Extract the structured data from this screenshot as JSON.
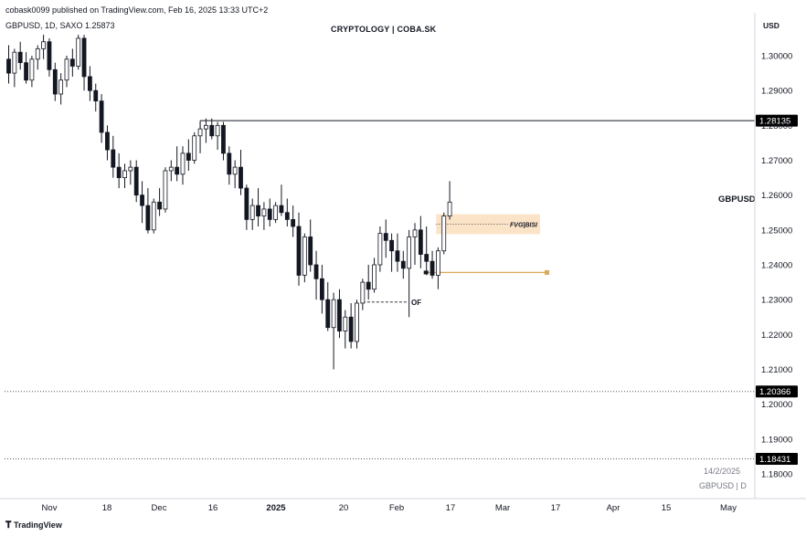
{
  "header": {
    "publish_line": "cobask0099 published on TradingView.com, Feb 16, 2025 13:33 UTC+2",
    "symbol_line": "GBPUSD, 1D, SAXO  1.25873",
    "watermark": "CRYPTOLOGY | COBA.SK",
    "currency": "USD"
  },
  "footer": {
    "logo_text": "TradingView",
    "date_note": "14/2/2025",
    "symbol_note": "GBPUSD | D"
  },
  "colors": {
    "candle": "#131722",
    "bull_fill": "#ffffff",
    "bear_fill": "#131722",
    "fvg_zone": "#fbe3c8",
    "fvg_line": "#d9a85a",
    "label_bg": "#000000",
    "text": "#131722"
  },
  "chart_data": {
    "type": "candlestick",
    "symbol": "GBPUSD",
    "timeframe": "1D",
    "last_price": 1.25873,
    "ylim": [
      1.175,
      1.31
    ],
    "yticks": [
      "1.30000",
      "1.29000",
      "1.28000",
      "1.27000",
      "1.26000",
      "1.25000",
      "1.24000",
      "1.23000",
      "1.22000",
      "1.21000",
      "1.20000",
      "1.19000",
      "1.18000"
    ],
    "xticks": [
      "Nov",
      "18",
      "Dec",
      "16",
      "2025",
      "20",
      "Feb",
      "17",
      "Mar",
      "17",
      "Apr",
      "15",
      "May"
    ],
    "series": [
      {
        "candles": [
          [
            1.299,
            1.303,
            1.292,
            1.295
          ],
          [
            1.295,
            1.302,
            1.291,
            1.301
          ],
          [
            1.301,
            1.304,
            1.296,
            1.298
          ],
          [
            1.298,
            1.301,
            1.292,
            1.293
          ],
          [
            1.293,
            1.3,
            1.291,
            1.299
          ],
          [
            1.299,
            1.303,
            1.296,
            1.302
          ],
          [
            1.302,
            1.306,
            1.299,
            1.304
          ],
          [
            1.304,
            1.305,
            1.294,
            1.296
          ],
          [
            1.296,
            1.298,
            1.287,
            1.289
          ],
          [
            1.289,
            1.295,
            1.286,
            1.293
          ],
          [
            1.293,
            1.3,
            1.291,
            1.299
          ],
          [
            1.299,
            1.302,
            1.294,
            1.297
          ],
          [
            1.297,
            1.306,
            1.296,
            1.305
          ],
          [
            1.305,
            1.306,
            1.29,
            1.294
          ],
          [
            1.294,
            1.297,
            1.287,
            1.29
          ],
          [
            1.29,
            1.292,
            1.284,
            1.287
          ],
          [
            1.287,
            1.289,
            1.275,
            1.278
          ],
          [
            1.278,
            1.28,
            1.27,
            1.273
          ],
          [
            1.273,
            1.277,
            1.265,
            1.268
          ],
          [
            1.268,
            1.272,
            1.262,
            1.265
          ],
          [
            1.265,
            1.269,
            1.262,
            1.267
          ],
          [
            1.267,
            1.27,
            1.263,
            1.268
          ],
          [
            1.268,
            1.27,
            1.258,
            1.26
          ],
          [
            1.26,
            1.264,
            1.252,
            1.257
          ],
          [
            1.257,
            1.262,
            1.249,
            1.25
          ],
          [
            1.25,
            1.259,
            1.249,
            1.258
          ],
          [
            1.258,
            1.262,
            1.254,
            1.256
          ],
          [
            1.256,
            1.268,
            1.255,
            1.267
          ],
          [
            1.267,
            1.27,
            1.264,
            1.268
          ],
          [
            1.268,
            1.274,
            1.264,
            1.266
          ],
          [
            1.266,
            1.274,
            1.263,
            1.272
          ],
          [
            1.272,
            1.276,
            1.267,
            1.27
          ],
          [
            1.27,
            1.278,
            1.269,
            1.277
          ],
          [
            1.277,
            1.281,
            1.272,
            1.279
          ],
          [
            1.279,
            1.282,
            1.275,
            1.28
          ],
          [
            1.28,
            1.282,
            1.276,
            1.277
          ],
          [
            1.277,
            1.281,
            1.273,
            1.28
          ],
          [
            1.28,
            1.281,
            1.27,
            1.272
          ],
          [
            1.272,
            1.274,
            1.263,
            1.266
          ],
          [
            1.266,
            1.27,
            1.262,
            1.268
          ],
          [
            1.268,
            1.273,
            1.26,
            1.262
          ],
          [
            1.262,
            1.263,
            1.25,
            1.253
          ],
          [
            1.253,
            1.259,
            1.25,
            1.257
          ],
          [
            1.257,
            1.262,
            1.251,
            1.254
          ],
          [
            1.254,
            1.258,
            1.25,
            1.256
          ],
          [
            1.256,
            1.259,
            1.251,
            1.253
          ],
          [
            1.253,
            1.258,
            1.252,
            1.257
          ],
          [
            1.257,
            1.263,
            1.254,
            1.255
          ],
          [
            1.255,
            1.259,
            1.251,
            1.253
          ],
          [
            1.253,
            1.257,
            1.248,
            1.251
          ],
          [
            1.251,
            1.255,
            1.234,
            1.237
          ],
          [
            1.237,
            1.249,
            1.235,
            1.248
          ],
          [
            1.248,
            1.253,
            1.238,
            1.24
          ],
          [
            1.24,
            1.244,
            1.23,
            1.236
          ],
          [
            1.236,
            1.24,
            1.226,
            1.23
          ],
          [
            1.23,
            1.235,
            1.221,
            1.222
          ],
          [
            1.222,
            1.232,
            1.21,
            1.23
          ],
          [
            1.23,
            1.233,
            1.219,
            1.221
          ],
          [
            1.221,
            1.227,
            1.216,
            1.225
          ],
          [
            1.225,
            1.229,
            1.216,
            1.218
          ],
          [
            1.218,
            1.23,
            1.216,
            1.229
          ],
          [
            1.229,
            1.236,
            1.227,
            1.235
          ],
          [
            1.235,
            1.24,
            1.23,
            1.233
          ],
          [
            1.233,
            1.242,
            1.232,
            1.24
          ],
          [
            1.24,
            1.251,
            1.238,
            1.249
          ],
          [
            1.249,
            1.253,
            1.242,
            1.247
          ],
          [
            1.247,
            1.249,
            1.238,
            1.244
          ],
          [
            1.244,
            1.249,
            1.238,
            1.241
          ],
          [
            1.241,
            1.244,
            1.236,
            1.239
          ],
          [
            1.239,
            1.25,
            1.225,
            1.248
          ],
          [
            1.248,
            1.252,
            1.24,
            1.25
          ],
          [
            1.25,
            1.254,
            1.239,
            1.243
          ],
          [
            1.243,
            1.251,
            1.237,
            1.241
          ],
          [
            1.241,
            1.244,
            1.236,
            1.237
          ],
          [
            1.237,
            1.245,
            1.233,
            1.244
          ],
          [
            1.244,
            1.255,
            1.243,
            1.254
          ],
          [
            1.254,
            1.264,
            1.253,
            1.258
          ]
        ]
      }
    ],
    "annotations": [
      {
        "type": "hline",
        "value": 1.28135,
        "label": "1.28135"
      },
      {
        "type": "hline",
        "value": 1.20366,
        "label": "1.20366",
        "style": "dotted"
      },
      {
        "type": "hline",
        "value": 1.18431,
        "label": "1.18431",
        "style": "dotted"
      },
      {
        "type": "zone",
        "label": "FVG|BISI",
        "top": 1.2545,
        "bottom": 1.2488
      },
      {
        "type": "level",
        "value": 1.2378
      },
      {
        "type": "level",
        "label": "OF",
        "value": 1.2293
      }
    ]
  }
}
